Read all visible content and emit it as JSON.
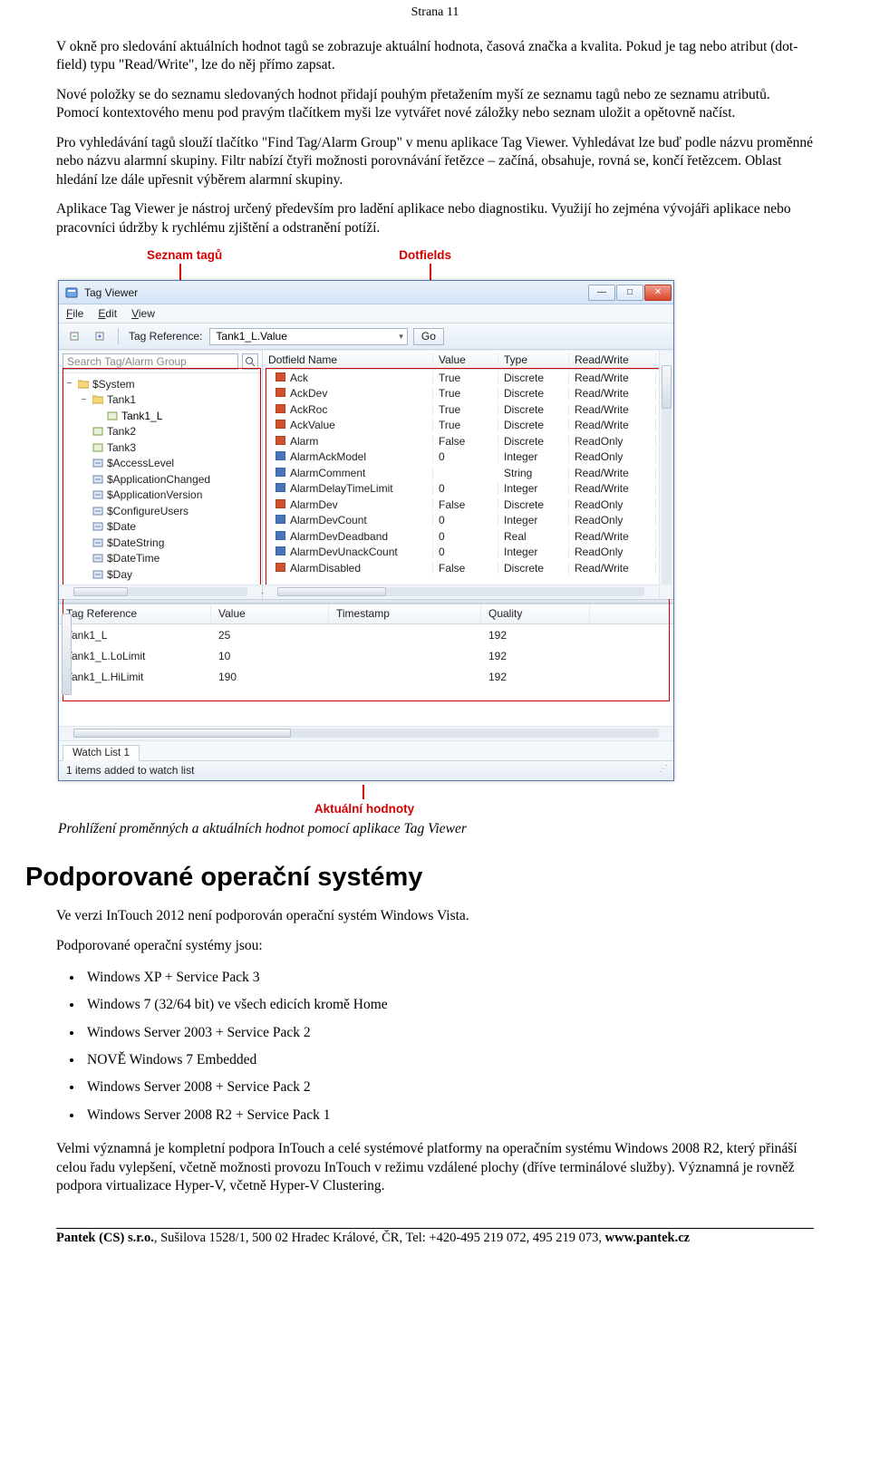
{
  "page_header": "Strana 11",
  "paras": {
    "p1": "V okně pro sledování aktuálních hodnot tagů se zobrazuje aktuální hodnota, časová značka a kvalita. Pokud je tag nebo atribut (dot-field) typu \"Read/Write\", lze do něj přímo zapsat.",
    "p2": "Nové položky se do seznamu sledovaných hodnot přidají pouhým přetažením myší ze seznamu tagů nebo ze seznamu atributů. Pomocí kontextového menu pod pravým tlačítkem myši lze vytvářet nové záložky nebo seznam uložit a opětovně načíst.",
    "p3": "Pro vyhledávání tagů slouží tlačítko \"Find Tag/Alarm Group\" v menu aplikace Tag Viewer. Vyhledávat lze buď podle názvu proměnné nebo názvu alarmní skupiny. Filtr nabízí čtyři možnosti porovnávání řetězce – začíná, obsahuje, rovná se, končí řetězcem. Oblast hledání lze dále upřesnit výběrem alarmní skupiny.",
    "p4": "Aplikace Tag Viewer je nástroj určený především pro ladění aplikace nebo diagnostiku. Využijí ho zejména vývojáři aplikace nebo pracovníci údržby k rychlému zjištění a odstranění potíží."
  },
  "annot": {
    "tags": "Seznam tagů",
    "dotfields": "Dotfields",
    "values": "Aktuální hodnoty"
  },
  "window": {
    "title": "Tag Viewer",
    "menus": {
      "file": "File",
      "edit": "Edit",
      "view": "View"
    },
    "toolbar": {
      "ref_label": "Tag Reference:",
      "ref_value": "Tank1_L.Value",
      "go": "Go"
    },
    "search_placeholder": "Search Tag/Alarm Group",
    "tree": [
      {
        "depth": 0,
        "tw": "−",
        "icon": "folder",
        "label": "$System"
      },
      {
        "depth": 1,
        "tw": "−",
        "icon": "folder",
        "label": "Tank1"
      },
      {
        "depth": 2,
        "tw": "",
        "icon": "tag",
        "label": "Tank1_L",
        "sel": true
      },
      {
        "depth": 1,
        "tw": "",
        "icon": "tag",
        "label": "Tank2"
      },
      {
        "depth": 1,
        "tw": "",
        "icon": "tag",
        "label": "Tank3"
      },
      {
        "depth": 1,
        "tw": "",
        "icon": "sys",
        "label": "$AccessLevel"
      },
      {
        "depth": 1,
        "tw": "",
        "icon": "sys",
        "label": "$ApplicationChanged"
      },
      {
        "depth": 1,
        "tw": "",
        "icon": "sys",
        "label": "$ApplicationVersion"
      },
      {
        "depth": 1,
        "tw": "",
        "icon": "sys",
        "label": "$ConfigureUsers"
      },
      {
        "depth": 1,
        "tw": "",
        "icon": "sys",
        "label": "$Date"
      },
      {
        "depth": 1,
        "tw": "",
        "icon": "sys",
        "label": "$DateString"
      },
      {
        "depth": 1,
        "tw": "",
        "icon": "sys",
        "label": "$DateTime"
      },
      {
        "depth": 1,
        "tw": "",
        "icon": "sys",
        "label": "$Day"
      }
    ],
    "grid": {
      "headers": {
        "name": "Dotfield Name",
        "value": "Value",
        "type": "Type",
        "rw": "Read/Write"
      },
      "rows": [
        {
          "ico": "r",
          "name": "Ack",
          "value": "True",
          "type": "Discrete",
          "rw": "Read/Write"
        },
        {
          "ico": "r",
          "name": "AckDev",
          "value": "True",
          "type": "Discrete",
          "rw": "Read/Write"
        },
        {
          "ico": "r",
          "name": "AckRoc",
          "value": "True",
          "type": "Discrete",
          "rw": "Read/Write"
        },
        {
          "ico": "r",
          "name": "AckValue",
          "value": "True",
          "type": "Discrete",
          "rw": "Read/Write"
        },
        {
          "ico": "r",
          "name": "Alarm",
          "value": "False",
          "type": "Discrete",
          "rw": "ReadOnly"
        },
        {
          "ico": "b",
          "name": "AlarmAckModel",
          "value": "0",
          "type": "Integer",
          "rw": "ReadOnly"
        },
        {
          "ico": "b",
          "name": "AlarmComment",
          "value": "",
          "type": "String",
          "rw": "Read/Write"
        },
        {
          "ico": "b",
          "name": "AlarmDelayTimeLimit",
          "value": "0",
          "type": "Integer",
          "rw": "Read/Write"
        },
        {
          "ico": "r",
          "name": "AlarmDev",
          "value": "False",
          "type": "Discrete",
          "rw": "ReadOnly"
        },
        {
          "ico": "b",
          "name": "AlarmDevCount",
          "value": "0",
          "type": "Integer",
          "rw": "ReadOnly"
        },
        {
          "ico": "b",
          "name": "AlarmDevDeadband",
          "value": "0",
          "type": "Real",
          "rw": "Read/Write"
        },
        {
          "ico": "b",
          "name": "AlarmDevUnackCount",
          "value": "0",
          "type": "Integer",
          "rw": "ReadOnly"
        },
        {
          "ico": "r",
          "name": "AlarmDisabled",
          "value": "False",
          "type": "Discrete",
          "rw": "Read/Write"
        }
      ]
    },
    "watch": {
      "headers": {
        "ref": "Tag Reference",
        "val": "Value",
        "ts": "Timestamp",
        "q": "Quality"
      },
      "rows": [
        {
          "ref": "Tank1_L",
          "val": "25",
          "ts": "",
          "q": "192"
        },
        {
          "ref": "Tank1_L.LoLimit",
          "val": "10",
          "ts": "",
          "q": "192"
        },
        {
          "ref": "Tank1_L.HiLimit",
          "val": "190",
          "ts": "",
          "q": "192"
        }
      ],
      "tab": "Watch List 1"
    },
    "status": "1 items added to watch list"
  },
  "caption": "Prohlížení proměnných a aktuálních hodnot pomocí aplikace Tag Viewer",
  "section_title": "Podporované operační systémy",
  "os_intro1": "Ve verzi InTouch 2012 není podporován operační systém Windows Vista.",
  "os_intro2": "Podporované operační systémy jsou:",
  "os_list": [
    "Windows XP + Service Pack 3",
    "Windows 7 (32/64 bit) ve všech edicích kromě Home",
    "Windows Server 2003 + Service Pack 2",
    "NOVĚ Windows 7 Embedded",
    "Windows Server 2008 + Service Pack 2",
    "Windows Server 2008 R2 + Service Pack 1"
  ],
  "os_para": "Velmi významná je kompletní podpora InTouch a celé systémové platformy na operačním systému Windows 2008 R2, který přináší celou řadu vylepšení, včetně možnosti provozu InTouch v režimu vzdálené plochy (dříve terminálové služby). Významná je rovněž podpora virtualizace Hyper-V, včetně Hyper-V Clustering.",
  "footer_a": "Pantek (CS) s.r.o.",
  "footer_b": ", Sušilova 1528/1, 500 02 Hradec Králové, ČR, Tel: +420-495 219 072, 495 219 073, ",
  "footer_c": "www.pantek.cz",
  "colors": {
    "annot": "#d40000"
  }
}
